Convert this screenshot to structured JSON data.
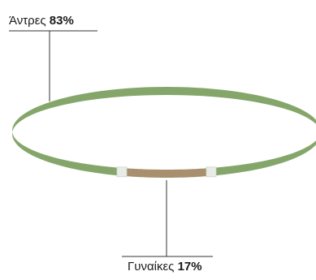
{
  "chart_data": {
    "type": "pie",
    "categories": [
      "Άντρες",
      "Γυναίκες"
    ],
    "values": [
      83,
      17
    ],
    "unit": "%",
    "labels": [
      {
        "name": "Άντρες",
        "value_text": "83%"
      },
      {
        "name": "Γυναίκες",
        "value_text": "17%"
      }
    ],
    "colors": [
      "#85a66b",
      "#a8906e"
    ],
    "title": "",
    "legend": "none"
  }
}
